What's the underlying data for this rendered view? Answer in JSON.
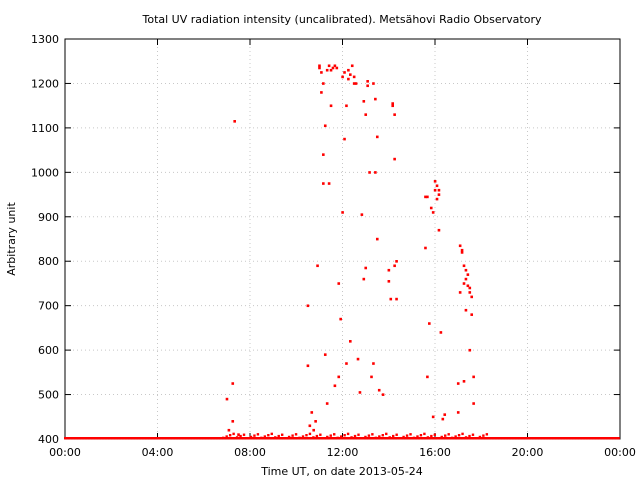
{
  "chart_data": {
    "type": "scatter",
    "title": "Total UV radiation intensity (uncalibrated). Metsähovi Radio Observatory",
    "xlabel": "Time UT, on date 2013-05-24",
    "ylabel": "Arbitrary unit",
    "xlim": [
      "00:00",
      "24:00"
    ],
    "ylim": [
      400,
      1300
    ],
    "x_ticks": [
      "00:00",
      "04:00",
      "08:00",
      "12:00",
      "16:00",
      "20:00",
      "00:00"
    ],
    "y_ticks": [
      "400",
      "500",
      "600",
      "700",
      "800",
      "900",
      "1000",
      "1100",
      "1200",
      "1300"
    ],
    "grid": true,
    "color": "#ff0000",
    "series": [
      {
        "points": [
          [
            "07:00",
            490
          ],
          [
            "07:05",
            420
          ],
          [
            "07:15",
            525
          ],
          [
            "07:15",
            440
          ],
          [
            "07:20",
            1115
          ],
          [
            "07:30",
            410
          ],
          [
            "10:30",
            700
          ],
          [
            "10:30",
            565
          ],
          [
            "10:35",
            430
          ],
          [
            "10:40",
            460
          ],
          [
            "10:45",
            420
          ],
          [
            "10:50",
            440
          ],
          [
            "10:55",
            790
          ],
          [
            "11:00",
            1240
          ],
          [
            "11:00",
            1235
          ],
          [
            "11:05",
            1225
          ],
          [
            "11:05",
            1180
          ],
          [
            "11:10",
            1200
          ],
          [
            "11:10",
            1040
          ],
          [
            "11:10",
            975
          ],
          [
            "11:15",
            590
          ],
          [
            "11:15",
            1105
          ],
          [
            "11:20",
            1230
          ],
          [
            "11:20",
            480
          ],
          [
            "11:25",
            1240
          ],
          [
            "11:25",
            975
          ],
          [
            "11:30",
            1230
          ],
          [
            "11:30",
            1150
          ],
          [
            "11:35",
            1235
          ],
          [
            "11:40",
            1240
          ],
          [
            "11:40",
            520
          ],
          [
            "11:45",
            1235
          ],
          [
            "11:50",
            750
          ],
          [
            "11:50",
            540
          ],
          [
            "11:55",
            670
          ],
          [
            "12:00",
            910
          ],
          [
            "12:00",
            1215
          ],
          [
            "12:05",
            1225
          ],
          [
            "12:05",
            1075
          ],
          [
            "12:10",
            1150
          ],
          [
            "12:10",
            570
          ],
          [
            "12:15",
            1210
          ],
          [
            "12:15",
            1230
          ],
          [
            "12:20",
            620
          ],
          [
            "12:20",
            1220
          ],
          [
            "12:25",
            1240
          ],
          [
            "12:30",
            1215
          ],
          [
            "12:30",
            1200
          ],
          [
            "12:35",
            1200
          ],
          [
            "12:40",
            580
          ],
          [
            "12:45",
            505
          ],
          [
            "12:50",
            905
          ],
          [
            "12:55",
            1160
          ],
          [
            "12:55",
            760
          ],
          [
            "13:00",
            1130
          ],
          [
            "13:00",
            785
          ],
          [
            "13:05",
            1205
          ],
          [
            "13:05",
            1195
          ],
          [
            "13:10",
            1000
          ],
          [
            "13:15",
            540
          ],
          [
            "13:20",
            1200
          ],
          [
            "13:20",
            570
          ],
          [
            "13:25",
            1165
          ],
          [
            "13:25",
            1000
          ],
          [
            "13:30",
            1080
          ],
          [
            "13:30",
            850
          ],
          [
            "13:35",
            510
          ],
          [
            "13:45",
            500
          ],
          [
            "14:00",
            780
          ],
          [
            "14:00",
            755
          ],
          [
            "14:05",
            715
          ],
          [
            "14:10",
            1150
          ],
          [
            "14:10",
            1155
          ],
          [
            "14:15",
            1130
          ],
          [
            "14:15",
            790
          ],
          [
            "14:15",
            1030
          ],
          [
            "14:20",
            715
          ],
          [
            "14:20",
            800
          ],
          [
            "15:35",
            945
          ],
          [
            "15:35",
            830
          ],
          [
            "15:40",
            945
          ],
          [
            "15:40",
            540
          ],
          [
            "15:45",
            660
          ],
          [
            "15:50",
            920
          ],
          [
            "15:55",
            910
          ],
          [
            "15:55",
            450
          ],
          [
            "16:00",
            960
          ],
          [
            "16:00",
            980
          ],
          [
            "16:05",
            940
          ],
          [
            "16:05",
            970
          ],
          [
            "16:10",
            950
          ],
          [
            "16:10",
            960
          ],
          [
            "16:10",
            870
          ],
          [
            "16:15",
            640
          ],
          [
            "16:20",
            445
          ],
          [
            "16:25",
            455
          ],
          [
            "17:00",
            525
          ],
          [
            "17:00",
            460
          ],
          [
            "17:05",
            835
          ],
          [
            "17:05",
            730
          ],
          [
            "17:10",
            825
          ],
          [
            "17:10",
            820
          ],
          [
            "17:15",
            790
          ],
          [
            "17:15",
            750
          ],
          [
            "17:15",
            530
          ],
          [
            "17:20",
            780
          ],
          [
            "17:20",
            760
          ],
          [
            "17:20",
            690
          ],
          [
            "17:25",
            770
          ],
          [
            "17:25",
            745
          ],
          [
            "17:30",
            740
          ],
          [
            "17:30",
            600
          ],
          [
            "17:30",
            730
          ],
          [
            "17:35",
            720
          ],
          [
            "17:35",
            680
          ],
          [
            "17:40",
            540
          ],
          [
            "17:40",
            480
          ]
        ]
      }
    ]
  }
}
